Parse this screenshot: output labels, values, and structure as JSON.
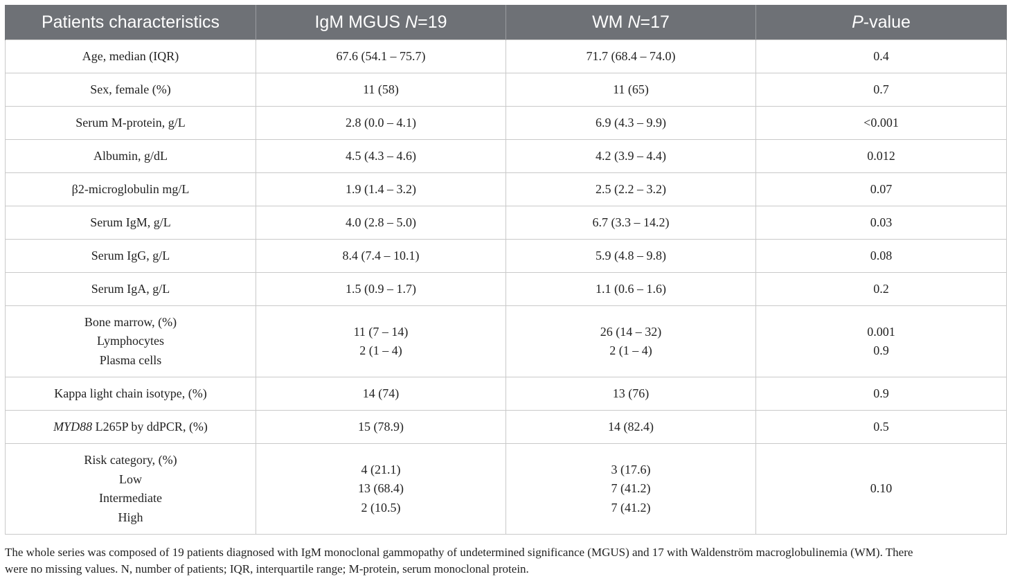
{
  "header": {
    "col1": "Patients characteristics",
    "col2_prefix": "IgM MGUS ",
    "col2_n": "N",
    "col2_suffix": "=19",
    "col3_prefix": "WM ",
    "col3_n": "N",
    "col3_suffix": "=17",
    "col4_p": "P",
    "col4_suffix": "-value"
  },
  "rows": {
    "age": {
      "label": "Age, median (IQR)",
      "mgus": "67.6 (54.1 – 75.7)",
      "wm": "71.7 (68.4 – 74.0)",
      "p": "0.4"
    },
    "sex": {
      "label": "Sex, female (%)",
      "mgus": "11 (58)",
      "wm": "11 (65)",
      "p": "0.7"
    },
    "mprotein": {
      "label": "Serum M-protein, g/L",
      "mgus": "2.8 (0.0 – 4.1)",
      "wm": "6.9 (4.3 – 9.9)",
      "p": "<0.001"
    },
    "albumin": {
      "label": "Albumin, g/dL",
      "mgus": "4.5 (4.3 – 4.6)",
      "wm": "4.2 (3.9 – 4.4)",
      "p": "0.012"
    },
    "b2m": {
      "label": "β2-microglobulin mg/L",
      "mgus": "1.9 (1.4 – 3.2)",
      "wm": "2.5 (2.2 – 3.2)",
      "p": "0.07"
    },
    "igm": {
      "label": "Serum IgM, g/L",
      "mgus": "4.0 (2.8 – 5.0)",
      "wm": "6.7 (3.3 – 14.2)",
      "p": "0.03"
    },
    "igg": {
      "label": "Serum IgG, g/L",
      "mgus": "8.4 (7.4 – 10.1)",
      "wm": "5.9 (4.8 – 9.8)",
      "p": "0.08"
    },
    "iga": {
      "label": "Serum IgA, g/L",
      "mgus": "1.5 (0.9 – 1.7)",
      "wm": "1.1 (0.6 – 1.6)",
      "p": "0.2"
    },
    "bone_marrow": {
      "label": "Bone marrow, (%)",
      "sub1": "Lymphocytes",
      "sub2": "Plasma cells",
      "mgus1": "11 (7 – 14)",
      "mgus2": "2 (1 – 4)",
      "wm1": "26 (14 – 32)",
      "wm2": "2 (1 – 4)",
      "p1": "0.001",
      "p2": "0.9"
    },
    "kappa": {
      "label": "Kappa light chain isotype, (%)",
      "mgus": "14 (74)",
      "wm": "13 (76)",
      "p": "0.9"
    },
    "myd88": {
      "gene": "MYD88",
      "label_rest": " L265P by ddPCR, (%)",
      "mgus": "15 (78.9)",
      "wm": "14 (82.4)",
      "p": "0.5"
    },
    "risk": {
      "label": "Risk category, (%)",
      "sub1": "Low",
      "sub2": "Intermediate",
      "sub3": "High",
      "mgus1": "4 (21.1)",
      "mgus2": "13 (68.4)",
      "mgus3": "2 (10.5)",
      "wm1": "3 (17.6)",
      "wm2": "7 (41.2)",
      "wm3": "7 (41.2)",
      "p": "0.10"
    }
  },
  "footnote": {
    "line1": "The whole series was composed of 19 patients diagnosed with IgM monoclonal gammopathy of undetermined significance (MGUS) and 17 with Waldenström macroglobulinemia (WM). There",
    "line2": "were no missing values. N, number of patients; IQR, interquartile range; M-protein, serum monoclonal protein."
  },
  "colors": {
    "header_bg": "#6e7176",
    "header_text": "#ffffff",
    "border": "#c9c9c9",
    "text": "#222222"
  }
}
